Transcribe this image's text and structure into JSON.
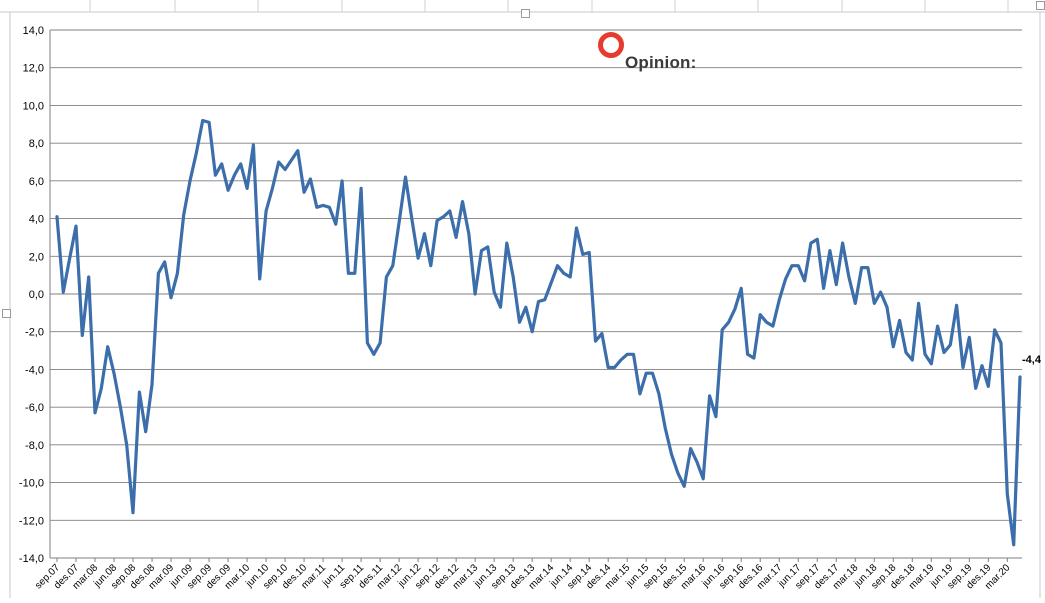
{
  "brand": {
    "name": "Opinion:",
    "logo_color": "#e63b2e",
    "text_color": "#3a3a3a"
  },
  "chart_data": {
    "type": "line",
    "title": "",
    "xlabel": "",
    "ylabel": "",
    "ylim": [
      -14,
      14
    ],
    "y_ticks": [
      "14,0",
      "12,0",
      "10,0",
      "8,0",
      "6,0",
      "4,0",
      "2,0",
      "0,0",
      "-2,0",
      "-4,0",
      "-6,0",
      "-8,0",
      "-10,0",
      "-12,0",
      "-14,0"
    ],
    "grid": true,
    "line_color": "#3b6eaa",
    "x_ticks": [
      "sep.07",
      "des.07",
      "mar.08",
      "jun.08",
      "sep.08",
      "des.08",
      "mar.09",
      "jun.09",
      "sep.09",
      "des.09",
      "mar.10",
      "jun.10",
      "sep.10",
      "des.10",
      "mar.11",
      "jun.11",
      "sep.11",
      "des.11",
      "mar.12",
      "jun.12",
      "sep.12",
      "des.12",
      "mar.13",
      "jun.13",
      "sep.13",
      "des.13",
      "mar.14",
      "jun.14",
      "sep.14",
      "des.14",
      "mar.15",
      "jun.15",
      "sep.15",
      "des.15",
      "mar.16",
      "jun.16",
      "sep.16",
      "des.16",
      "mar.17",
      "jun.17",
      "sep.17",
      "des.17",
      "mar.18",
      "jun.18",
      "sep.18",
      "des.18",
      "mar.19",
      "jun.19",
      "sep.19",
      "des.19",
      "mar.20"
    ],
    "series": [
      {
        "values": [
          4.1,
          0.1,
          1.9,
          3.6,
          -2.2,
          0.9,
          -6.3,
          -5.0,
          -2.8,
          -4.2,
          -6.0,
          -8.0,
          -11.6,
          -5.2,
          -7.3,
          -4.8,
          1.1,
          1.7,
          -0.2,
          1.1,
          4.2,
          6.0,
          7.5,
          9.2,
          9.1,
          6.3,
          6.9,
          5.5,
          6.3,
          6.9,
          5.6,
          7.9,
          0.8,
          4.4,
          5.6,
          7.0,
          6.6,
          7.1,
          7.6,
          5.4,
          6.1,
          4.6,
          4.7,
          4.6,
          3.7,
          6.0,
          1.1,
          1.1,
          5.6,
          -2.6,
          -3.2,
          -2.6,
          0.9,
          1.5,
          3.8,
          6.2,
          4.0,
          1.9,
          3.2,
          1.5,
          3.9,
          4.1,
          4.4,
          3.0,
          4.9,
          3.2,
          0.0,
          2.3,
          2.5,
          0.1,
          -0.7,
          2.7,
          0.9,
          -1.5,
          -0.7,
          -2.0,
          -0.4,
          -0.3,
          0.6,
          1.5,
          1.1,
          0.9,
          3.5,
          2.1,
          2.2,
          -2.5,
          -2.1,
          -3.9,
          -3.9,
          -3.5,
          -3.2,
          -3.2,
          -5.3,
          -4.2,
          -4.2,
          -5.3,
          -7.1,
          -8.5,
          -9.5,
          -10.2,
          -8.2,
          -8.9,
          -9.8,
          -5.4,
          -6.5,
          -1.9,
          -1.5,
          -0.8,
          0.3,
          -3.2,
          -3.4,
          -1.1,
          -1.5,
          -1.7,
          -0.3,
          0.8,
          1.5,
          1.5,
          0.7,
          2.7,
          2.9,
          0.3,
          2.3,
          0.5,
          2.7,
          0.9,
          -0.5,
          1.4,
          1.4,
          -0.5,
          0.1,
          -0.7,
          -2.8,
          -1.4,
          -3.1,
          -3.5,
          -0.5,
          -3.2,
          -3.7,
          -1.7,
          -3.1,
          -2.7,
          -0.6,
          -3.9,
          -2.3,
          -5.0,
          -3.8,
          -4.9,
          -1.9,
          -2.6,
          -10.6,
          -13.3,
          -4.4
        ]
      }
    ],
    "annotations": [
      {
        "text": "-4,4",
        "label_for": "last-point"
      }
    ]
  }
}
